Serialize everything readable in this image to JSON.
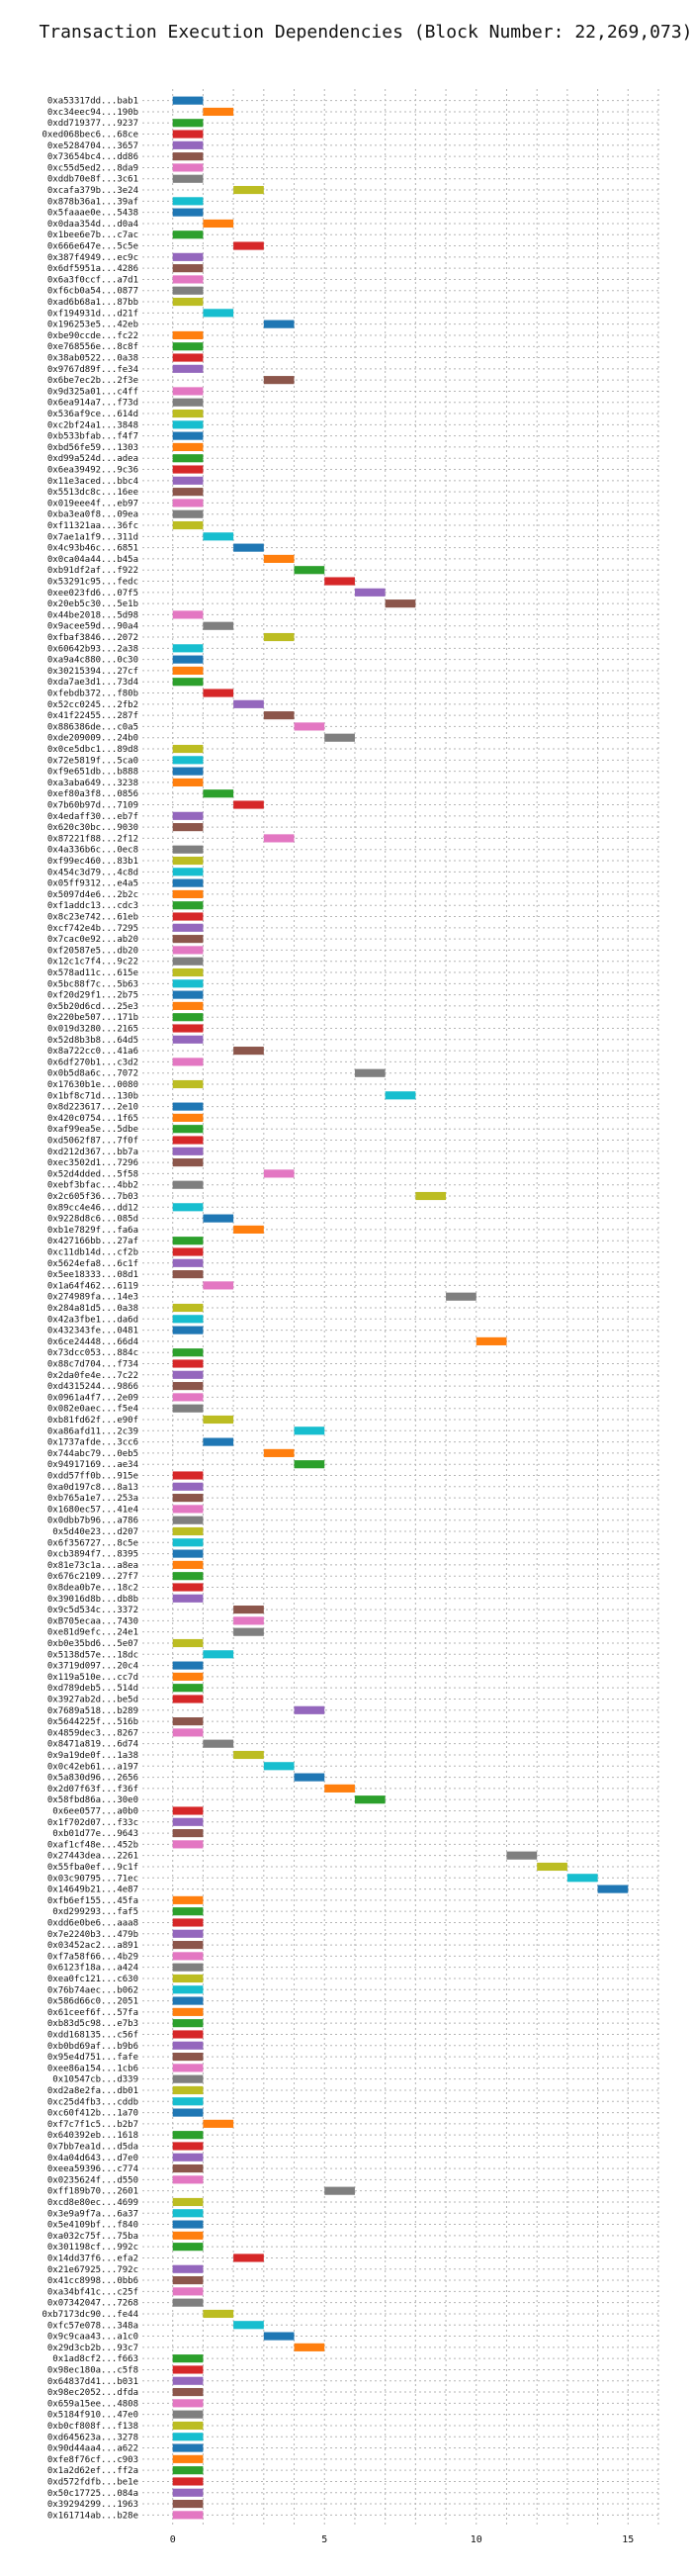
{
  "chart_data": {
    "type": "bar",
    "orientation": "horizontal",
    "title": "Transaction Execution Dependencies (Block Number: 22,269,073)",
    "xlabel": "",
    "ylabel": "",
    "xlim": [
      -1,
      16
    ],
    "xticks": [
      "0",
      "5",
      "10",
      "15"
    ],
    "grid": true,
    "legend": "none",
    "palette": [
      "#1f77b4",
      "#ff7f0e",
      "#2ca02c",
      "#d62728",
      "#9467bd",
      "#8c564b",
      "#e377c2",
      "#7f7f7f",
      "#bcbd22",
      "#17becf"
    ],
    "categories": [
      "0xa53317dd...bab1",
      "0xc34eec94...190b",
      "0xdd719377...9237",
      "0xed068bec6...68ce",
      "0xe5284704...3657",
      "0x73654bc4...dd86",
      "0xc55d5ed2...8da9",
      "0xddb70e8f...3c61",
      "0xcafa379b...3e24",
      "0x878b36a1...39af",
      "0x5faaae0e...5438",
      "0x0daa354d...d0a4",
      "0x1bee6e7b...c7ac",
      "0x666e647e...5c5e",
      "0x387f4949...ec9c",
      "0x6df5951a...4286",
      "0x6a3f0ccf...a7d1",
      "0xf6cb0a54...0877",
      "0xad6b68a1...87bb",
      "0xf194931d...d21f",
      "0x196253e5...42eb",
      "0xbe90ccde...fc22",
      "0xe768556e...8c8f",
      "0x38ab0522...0a38",
      "0x9767d89f...fe34",
      "0x6be7ec2b...2f3e",
      "0x9d325a01...c4ff",
      "0x6ea914a7...f73d",
      "0x536af9ce...614d",
      "0xc2bf24a1...3848",
      "0xb533bfab...f4f7",
      "0xbd56fe59...1303",
      "0xd99a524d...adea",
      "0x6ea39492...9c36",
      "0x11e3aced...bbc4",
      "0x5513dc8c...16ee",
      "0x019eee4f...eb97",
      "0xba3ea0f8...09ea",
      "0xf11321aa...36fc",
      "0x7ae1a1f9...311d",
      "0x4c93b46c...6851",
      "0x0ca04a44...b45a",
      "0xb91df2af...f922",
      "0x53291c95...fedc",
      "0xee023fd6...07f5",
      "0x20eb5c30...5e1b",
      "0x44be2018...5d98",
      "0x9acee59d...90a4",
      "0xfbaf3846...2072",
      "0x60642b93...2a38",
      "0xa9a4c880...0c30",
      "0x30215394...27cf",
      "0xda7ae3d1...73d4",
      "0xfebdb372...f80b",
      "0x52cc0245...2fb2",
      "0x41f22455...287f",
      "0x886386de...c0a5",
      "0xde209009...24b0",
      "0x0ce5dbc1...89d8",
      "0x72e5819f...5ca0",
      "0xf9e651db...b888",
      "0xa3aba649...3238",
      "0xef80a3f8...0856",
      "0x7b60b97d...7109",
      "0x4edaff30...eb7f",
      "0x620c30bc...9030",
      "0x87221f88...2f12",
      "0x4a336b6c...0ec8",
      "0xf99ec460...83b1",
      "0x454c3d79...4c8d",
      "0x05ff9312...e4a5",
      "0x5097d4e6...2b2c",
      "0xf1addc13...cdc3",
      "0x8c23e742...61eb",
      "0xcf742e4b...7295",
      "0x7cac0e92...ab20",
      "0xf20587e5...db20",
      "0x12c1c7f4...9c22",
      "0x578ad11c...615e",
      "0x5bc88f7c...5b63",
      "0xf20d29f1...2b75",
      "0x5b20d6cd...25e3",
      "0x220be507...171b",
      "0x019d3280...2165",
      "0x52d8b3b8...64d5",
      "0x8a722cc0...41a6",
      "0x6df270b1...c3d2",
      "0x0b5d8a6c...7072",
      "0x17630b1e...0080",
      "0x1bf8c71d...130b",
      "0x8d223617...2e10",
      "0x420c0754...1f65",
      "0xaf99ea5e...5dbe",
      "0xd5062f87...7f0f",
      "0xd212d367...bb7a",
      "0xec3502d1...7296",
      "0x52d4dded...5f58",
      "0xebf3bfac...4bb2",
      "0x2c605f36...7b03",
      "0x89cc4e46...dd12",
      "0x9228d8c6...085d",
      "0xb1e7829f...fa6a",
      "0x427166bb...27af",
      "0xc11db14d...cf2b",
      "0x5624efa8...6c1f",
      "0x5ee18333...08d1",
      "0x1a64f462...6119",
      "0x274989fa...14e3",
      "0x284a81d5...0a38",
      "0x42a3fbe1...da6d",
      "0x432343fe...0481",
      "0x6ce24448...66d4",
      "0x73dcc053...884c",
      "0x88c7d704...f734",
      "0x2da0fe4e...7c22",
      "0xd4315244...9866",
      "0x0961a4f7...2e09",
      "0x082e0aec...f5e4",
      "0xb81fd62f...e90f",
      "0xa86afd11...2c39",
      "0x1737afde...3cc6",
      "0x744abc79...0eb5",
      "0x94917169...ae34",
      "0xdd57ff0b...915e",
      "0xa0d197c8...8a13",
      "0xb765a1e7...253a",
      "0x1680ec57...41e4",
      "0x0dbb7b96...a786",
      "0x5d40e23...d207",
      "0x6f356727...8c5e",
      "0xcb3894f7...8395",
      "0x81e73c1a...a8ea",
      "0x676c2109...27f7",
      "0x8dea0b7e...18c2",
      "0x39016d8b...db8b",
      "0x9c5d534c...3372",
      "0xB705ecaa...7430",
      "0xe81d9efc...24e1",
      "0xb0e35bd6...5e07",
      "0x5138d57e...18dc",
      "0x3719d097...20c4",
      "0x119a510e...cc7d",
      "0xd789deb5...514d",
      "0x3927ab2d...be5d",
      "0x7689a518...b289",
      "0x5644225f...516b",
      "0x4859dec3...8267",
      "0x8471a819...6d74",
      "0x9a19de0f...1a38",
      "0x0c42eb61...a197",
      "0x5a830d96...2656",
      "0x2d07f63f...f36f",
      "0x58fbd86a...30e0",
      "0x6ee0577...a0b0",
      "0x1f702d07...f33c",
      "0xb01d77e...9643",
      "0xaf1cf48e...452b",
      "0x27443dea...2261",
      "0x55fba0ef...9c1f",
      "0x03c90795...71ec",
      "0x14649b21...4e87",
      "0xfb6ef155...45fa",
      "0xd299293...faf5",
      "0xdd6e0be6...aaa8",
      "0x7e2240b3...479b",
      "0x03452ac2...a891",
      "0xf7a58f66...4b29",
      "0x6123f18a...a424",
      "0xea0fc121...c630",
      "0x76b74aec...b062",
      "0x586d66c0...2051",
      "0x61ceef6f...57fa",
      "0xb83d5c98...e7b3",
      "0xdd168135...c56f",
      "0xb0bd69af...b9b6",
      "0x95e4d751...fafe",
      "0xee86a154...1cb6",
      "0x10547cb...d339",
      "0xd2a8e2fa...db01",
      "0xc25d4fb3...cddb",
      "0xc60f412b...1a70",
      "0xf7c7f1c5...b2b7",
      "0x640392eb...1618",
      "0x7bb7ea1d...d5da",
      "0x4a04d643...d7e0",
      "0xeea59396...c774",
      "0x0235624f...d550",
      "0xff189b70...2601",
      "0xcd8e80ec...4699",
      "0x3e9a9f7a...6a37",
      "0x5e4109bf...f840",
      "0xa032c75f...75ba",
      "0x301198cf...992c",
      "0x14dd37f6...efa2",
      "0x21e67925...792c",
      "0x41cc8998...0bb6",
      "0xa34bf41c...c25f",
      "0x07342047...7268",
      "0xb7173dc90...fe44",
      "0xfc57e078...348a",
      "0x9c9caa43...a1c0",
      "0x29d3cb2b...93c7",
      "0x1ad8cf2...f663",
      "0x98ec180a...c5f8",
      "0x64837d41...b031",
      "0x98ec2052...dfda",
      "0x659a15ee...4808",
      "0x5184f910...47e0",
      "0xb0cf808f...f138",
      "0xd645623a...3278",
      "0x90d44aa4...a622",
      "0xfe8f76cf...c903",
      "0x1a2d62ef...ff2a",
      "0xd572fdfb...be1e",
      "0x50c17725...084a",
      "0x39294299...1963",
      "0x161714ab...b28e"
    ],
    "series": [
      {
        "start": [
          0,
          1,
          0,
          0,
          0,
          0,
          0,
          0,
          2,
          0,
          0,
          1,
          0,
          2,
          0,
          0,
          0,
          0,
          0,
          1,
          3,
          0,
          0,
          0,
          0,
          3,
          0,
          0,
          0,
          0,
          0,
          0,
          0,
          0,
          0,
          0,
          0,
          0,
          0,
          1,
          2,
          3,
          4,
          5,
          6,
          7,
          0,
          1,
          3,
          0,
          0,
          0,
          0,
          1,
          2,
          3,
          4,
          5,
          0,
          0,
          0,
          0,
          1,
          2,
          0,
          0,
          3,
          0,
          0,
          0,
          0,
          0,
          0,
          0,
          0,
          0,
          0,
          0,
          0,
          0,
          0,
          0,
          0,
          0,
          0,
          2,
          0,
          6,
          0,
          7,
          0,
          0,
          0,
          0,
          0,
          0,
          3,
          0,
          8,
          0,
          1,
          2,
          0,
          0,
          0,
          0,
          1,
          9,
          0,
          0,
          0,
          10,
          0,
          0,
          0,
          0,
          0,
          0,
          1,
          4,
          1,
          3,
          4,
          0,
          0,
          0,
          0,
          0,
          0,
          0,
          0,
          0,
          0,
          0,
          0,
          2,
          2,
          2,
          0,
          1,
          0,
          0,
          0,
          0,
          4,
          0,
          0,
          1,
          2,
          3,
          4,
          5,
          6,
          0,
          0,
          0,
          0,
          11,
          12,
          13,
          14,
          0,
          0,
          0,
          0,
          0,
          0,
          0,
          0,
          0,
          0,
          0,
          0,
          0,
          0,
          0,
          0,
          0,
          0,
          0,
          0,
          1,
          0,
          0,
          0,
          0,
          0,
          5,
          0,
          0,
          0,
          0,
          0,
          2,
          0,
          0,
          0,
          0,
          1,
          2,
          3,
          4,
          0,
          0,
          0,
          0,
          0,
          0,
          0,
          0,
          0,
          0,
          0,
          0,
          0,
          0,
          0
        ],
        "color_index": [
          0,
          1,
          2,
          3,
          4,
          5,
          6,
          7,
          8,
          9,
          0,
          1,
          2,
          3,
          4,
          5,
          6,
          7,
          8,
          9,
          0,
          1,
          2,
          3,
          4,
          5,
          6,
          7,
          8,
          9,
          0,
          1,
          2,
          3,
          4,
          5,
          6,
          7,
          8,
          9,
          0,
          1,
          2,
          3,
          4,
          5,
          6,
          7,
          8,
          9,
          0,
          1,
          2,
          3,
          4,
          5,
          6,
          7,
          8,
          9,
          0,
          1,
          2,
          3,
          4,
          5,
          6,
          7,
          8,
          9,
          0,
          1,
          2,
          3,
          4,
          5,
          6,
          7,
          8,
          9,
          0,
          1,
          2,
          3,
          4,
          5,
          6,
          7,
          8,
          9,
          0,
          1,
          2,
          3,
          4,
          5,
          6,
          7,
          8,
          9,
          0,
          1,
          2,
          3,
          4,
          5,
          6,
          7,
          8,
          9,
          0,
          1,
          2,
          3,
          4,
          5,
          6,
          7,
          8,
          9,
          0,
          1,
          2,
          3,
          4,
          5,
          6,
          7,
          8,
          9,
          0,
          1,
          2,
          3,
          4,
          5,
          6,
          7,
          8,
          9,
          0,
          1,
          2,
          3,
          4,
          5,
          6,
          7,
          8,
          9,
          0,
          1,
          2,
          3,
          4,
          5,
          6,
          7,
          8,
          9,
          0,
          1,
          2,
          3,
          4,
          5,
          6,
          7,
          8,
          9,
          0,
          1,
          2,
          3,
          4,
          5,
          6,
          7,
          8,
          9,
          0,
          1,
          2,
          3,
          4,
          5,
          6,
          7,
          8,
          9,
          0,
          1,
          2,
          3,
          4,
          5,
          6,
          7,
          8,
          9,
          0,
          1,
          2,
          3,
          4,
          5,
          6,
          7,
          8,
          9,
          0,
          1,
          2,
          3,
          4,
          5,
          6,
          7,
          8,
          9,
          0,
          1,
          2,
          3,
          4,
          5,
          6
        ]
      }
    ]
  }
}
